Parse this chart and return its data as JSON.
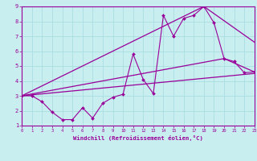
{
  "xlabel": "Windchill (Refroidissement éolien,°C)",
  "xlim": [
    0,
    23
  ],
  "ylim": [
    1,
    9
  ],
  "xticks": [
    0,
    1,
    2,
    3,
    4,
    5,
    6,
    7,
    8,
    9,
    10,
    11,
    12,
    13,
    14,
    15,
    16,
    17,
    18,
    19,
    20,
    21,
    22,
    23
  ],
  "yticks": [
    1,
    2,
    3,
    4,
    5,
    6,
    7,
    8,
    9
  ],
  "bg_color": "#c8eef0",
  "grid_color": "#aadde0",
  "line_color": "#990099",
  "series1_x": [
    0,
    1,
    2,
    3,
    4,
    5,
    6,
    7,
    8,
    9,
    10,
    11,
    12,
    13,
    14,
    15,
    16,
    17,
    18,
    19,
    20,
    21,
    22,
    23
  ],
  "series1_y": [
    3.0,
    3.0,
    2.6,
    1.9,
    1.4,
    1.4,
    2.2,
    1.5,
    2.5,
    2.9,
    3.1,
    5.8,
    4.1,
    3.15,
    8.4,
    7.0,
    8.2,
    8.4,
    9.0,
    7.9,
    5.5,
    5.3,
    4.55,
    4.6
  ],
  "series2_x": [
    0,
    23
  ],
  "series2_y": [
    3.0,
    4.5
  ],
  "series3_x": [
    0,
    20,
    23
  ],
  "series3_y": [
    3.0,
    5.5,
    4.6
  ],
  "series4_x": [
    0,
    18,
    23
  ],
  "series4_y": [
    3.0,
    9.0,
    6.6
  ]
}
